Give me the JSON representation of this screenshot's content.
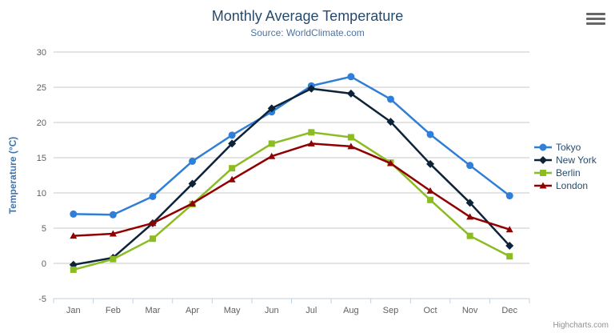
{
  "header": {
    "title": "Monthly Average Temperature",
    "subtitle": "Source: WorldClimate.com"
  },
  "credits_label": "Highcharts.com",
  "export_menu": {
    "icon": "hamburger-icon"
  },
  "chart_data": {
    "type": "line",
    "title": "Monthly Average Temperature",
    "subtitle": "Source: WorldClimate.com",
    "categories": [
      "Jan",
      "Feb",
      "Mar",
      "Apr",
      "May",
      "Jun",
      "Jul",
      "Aug",
      "Sep",
      "Oct",
      "Nov",
      "Dec"
    ],
    "series": [
      {
        "name": "Tokyo",
        "color": "#2f7ed8",
        "marker": "circle",
        "values": [
          7.0,
          6.9,
          9.5,
          14.5,
          18.2,
          21.5,
          25.2,
          26.5,
          23.3,
          18.3,
          13.9,
          9.6
        ]
      },
      {
        "name": "New York",
        "color": "#0d233a",
        "marker": "diamond",
        "values": [
          -0.2,
          0.8,
          5.7,
          11.3,
          17.0,
          22.0,
          24.8,
          24.1,
          20.1,
          14.1,
          8.6,
          2.5
        ]
      },
      {
        "name": "Berlin",
        "color": "#8bbc21",
        "marker": "square",
        "values": [
          -0.9,
          0.6,
          3.5,
          8.4,
          13.5,
          17.0,
          18.6,
          17.9,
          14.3,
          9.0,
          3.9,
          1.0
        ]
      },
      {
        "name": "London",
        "color": "#910000",
        "marker": "triangle",
        "values": [
          3.9,
          4.2,
          5.7,
          8.5,
          11.9,
          15.2,
          17.0,
          16.6,
          14.2,
          10.3,
          6.6,
          4.8
        ]
      }
    ],
    "xlabel": "",
    "ylabel": "Temperature (°C)",
    "ylim": [
      -5,
      30
    ],
    "ytick_interval": 5,
    "ytick_labels": [
      "-5",
      "0",
      "5",
      "10",
      "15",
      "20",
      "25",
      "30"
    ],
    "grid": true,
    "legend_position": "right",
    "colors": {
      "gridline": "#C8C8C8",
      "axis_line": "#C0D0E0",
      "tick_label": "#606060",
      "axis_title": "#4572A7",
      "title": "#274b6d",
      "subtitle": "#4d759e",
      "legend_text": "#274b6d",
      "credits": "#909090"
    }
  }
}
